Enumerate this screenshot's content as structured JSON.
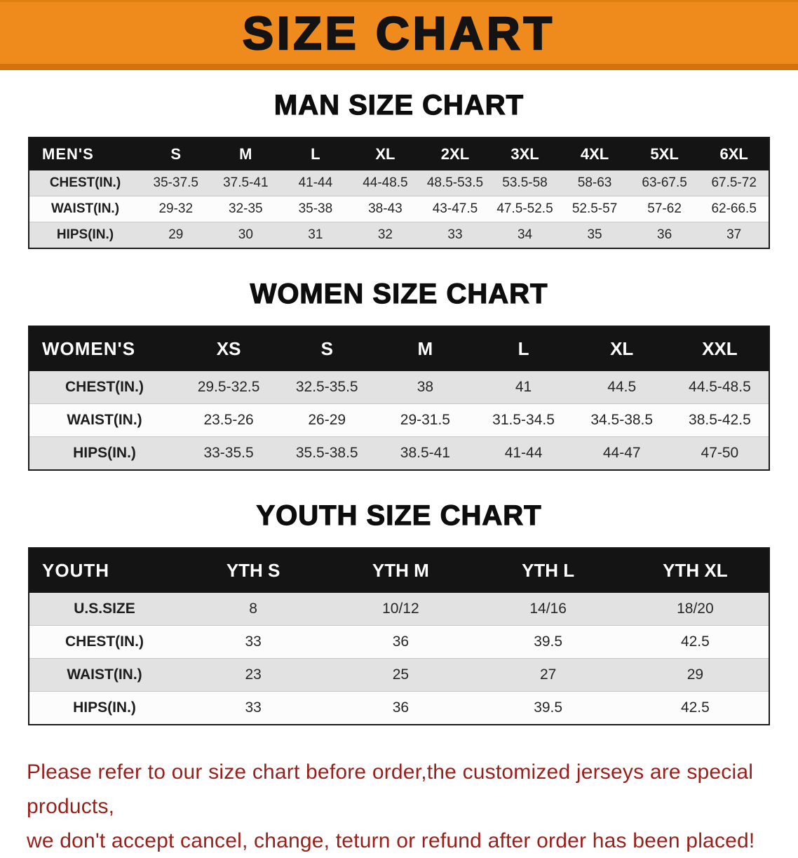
{
  "banner": {
    "title": "SIZE CHART"
  },
  "colors": {
    "banner_orange": "#EF8A1C",
    "banner_border_orange": "#D4720E",
    "header_black": "#141414",
    "row_gray": "#E2E2E2",
    "footer_red": "#9A1F1A"
  },
  "chart_data": [
    {
      "type": "table",
      "title": "MAN SIZE CHART",
      "corner_label": "MEN'S",
      "columns": [
        "S",
        "M",
        "L",
        "XL",
        "2XL",
        "3XL",
        "4XL",
        "5XL",
        "6XL"
      ],
      "rows": [
        {
          "label": "CHEST(IN.)",
          "values": [
            "35-37.5",
            "37.5-41",
            "41-44",
            "44-48.5",
            "48.5-53.5",
            "53.5-58",
            "58-63",
            "63-67.5",
            "67.5-72"
          ]
        },
        {
          "label": "WAIST(IN.)",
          "values": [
            "29-32",
            "32-35",
            "35-38",
            "38-43",
            "43-47.5",
            "47.5-52.5",
            "52.5-57",
            "57-62",
            "62-66.5"
          ]
        },
        {
          "label": "HIPS(IN.)",
          "values": [
            "29",
            "30",
            "31",
            "32",
            "33",
            "34",
            "35",
            "36",
            "37"
          ]
        }
      ]
    },
    {
      "type": "table",
      "title": "WOMEN SIZE CHART",
      "corner_label": "WOMEN'S",
      "columns": [
        "XS",
        "S",
        "M",
        "L",
        "XL",
        "XXL"
      ],
      "rows": [
        {
          "label": "CHEST(IN.)",
          "values": [
            "29.5-32.5",
            "32.5-35.5",
            "38",
            "41",
            "44.5",
            "44.5-48.5"
          ]
        },
        {
          "label": "WAIST(IN.)",
          "values": [
            "23.5-26",
            "26-29",
            "29-31.5",
            "31.5-34.5",
            "34.5-38.5",
            "38.5-42.5"
          ]
        },
        {
          "label": "HIPS(IN.)",
          "values": [
            "33-35.5",
            "35.5-38.5",
            "38.5-41",
            "41-44",
            "44-47",
            "47-50"
          ]
        }
      ]
    },
    {
      "type": "table",
      "title": "YOUTH SIZE CHART",
      "corner_label": "YOUTH",
      "columns": [
        "YTH S",
        "YTH M",
        "YTH L",
        "YTH XL"
      ],
      "rows": [
        {
          "label": "U.S.SIZE",
          "values": [
            "8",
            "10/12",
            "14/16",
            "18/20"
          ]
        },
        {
          "label": "CHEST(IN.)",
          "values": [
            "33",
            "36",
            "39.5",
            "42.5"
          ]
        },
        {
          "label": "WAIST(IN.)",
          "values": [
            "23",
            "25",
            "27",
            "29"
          ]
        },
        {
          "label": "HIPS(IN.)",
          "values": [
            "33",
            "36",
            "39.5",
            "42.5"
          ]
        }
      ]
    }
  ],
  "footer": {
    "line1": "Please refer to our size chart before order,the customized jerseys are special products,",
    "line2": "we don't accept cancel, change, teturn or refund after order has been placed!"
  }
}
